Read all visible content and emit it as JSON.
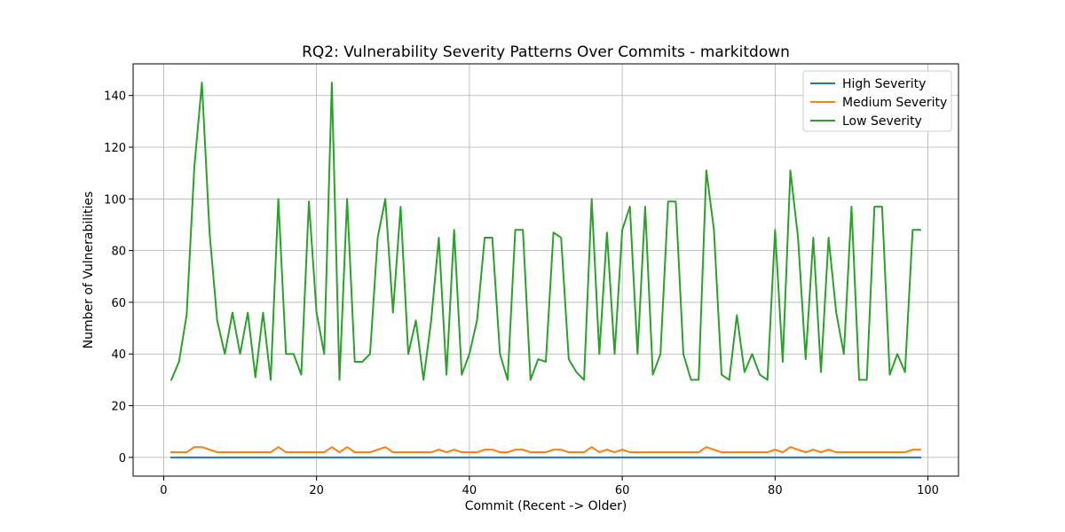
{
  "chart_data": {
    "type": "line",
    "title": "RQ2: Vulnerability Severity Patterns Over Commits - markitdown",
    "xlabel": "Commit (Recent -> Older)",
    "ylabel": "Number of Vulnerabilities",
    "xlim": [
      -4,
      104
    ],
    "ylim": [
      -7.25,
      152.25
    ],
    "xticks": [
      0,
      20,
      40,
      60,
      80,
      100
    ],
    "yticks": [
      0,
      20,
      40,
      60,
      80,
      100,
      120,
      140
    ],
    "grid": true,
    "legend_position": "top-right",
    "x": [
      1,
      2,
      3,
      4,
      5,
      6,
      7,
      8,
      9,
      10,
      11,
      12,
      13,
      14,
      15,
      16,
      17,
      18,
      19,
      20,
      21,
      22,
      23,
      24,
      25,
      26,
      27,
      28,
      29,
      30,
      31,
      32,
      33,
      34,
      35,
      36,
      37,
      38,
      39,
      40,
      41,
      42,
      43,
      44,
      45,
      46,
      47,
      48,
      49,
      50,
      51,
      52,
      53,
      54,
      55,
      56,
      57,
      58,
      59,
      60,
      61,
      62,
      63,
      64,
      65,
      66,
      67,
      68,
      69,
      70,
      71,
      72,
      73,
      74,
      75,
      76,
      77,
      78,
      79,
      80,
      81,
      82,
      83,
      84,
      85,
      86,
      87,
      88,
      89,
      90,
      91,
      92,
      93,
      94,
      95,
      96,
      97,
      98,
      99
    ],
    "series": [
      {
        "name": "High Severity",
        "color": "#1f77b4",
        "values": [
          0,
          0,
          0,
          0,
          0,
          0,
          0,
          0,
          0,
          0,
          0,
          0,
          0,
          0,
          0,
          0,
          0,
          0,
          0,
          0,
          0,
          0,
          0,
          0,
          0,
          0,
          0,
          0,
          0,
          0,
          0,
          0,
          0,
          0,
          0,
          0,
          0,
          0,
          0,
          0,
          0,
          0,
          0,
          0,
          0,
          0,
          0,
          0,
          0,
          0,
          0,
          0,
          0,
          0,
          0,
          0,
          0,
          0,
          0,
          0,
          0,
          0,
          0,
          0,
          0,
          0,
          0,
          0,
          0,
          0,
          0,
          0,
          0,
          0,
          0,
          0,
          0,
          0,
          0,
          0,
          0,
          0,
          0,
          0,
          0,
          0,
          0,
          0,
          0,
          0,
          0,
          0,
          0,
          0,
          0,
          0,
          0,
          0,
          0
        ]
      },
      {
        "name": "Medium Severity",
        "color": "#ff7f0e",
        "values": [
          2,
          2,
          2,
          4,
          4,
          3,
          2,
          2,
          2,
          2,
          2,
          2,
          2,
          2,
          4,
          2,
          2,
          2,
          2,
          2,
          2,
          4,
          2,
          4,
          2,
          2,
          2,
          3,
          4,
          2,
          2,
          2,
          2,
          2,
          2,
          3,
          2,
          3,
          2,
          2,
          2,
          3,
          3,
          2,
          2,
          3,
          3,
          2,
          2,
          2,
          3,
          3,
          2,
          2,
          2,
          4,
          2,
          3,
          2,
          3,
          2,
          2,
          2,
          2,
          2,
          2,
          2,
          2,
          2,
          2,
          4,
          3,
          2,
          2,
          2,
          2,
          2,
          2,
          2,
          3,
          2,
          4,
          3,
          2,
          3,
          2,
          3,
          2,
          2,
          2,
          2,
          2,
          2,
          2,
          2,
          2,
          2,
          3,
          3
        ]
      },
      {
        "name": "Low Severity",
        "color": "#2ca02c",
        "values": [
          30,
          37,
          55,
          112,
          145,
          87,
          53,
          40,
          56,
          40,
          56,
          31,
          56,
          30,
          100,
          40,
          40,
          32,
          99,
          56,
          40,
          145,
          30,
          100,
          37,
          37,
          40,
          85,
          100,
          56,
          97,
          40,
          53,
          30,
          53,
          85,
          32,
          88,
          32,
          40,
          53,
          85,
          85,
          40,
          30,
          88,
          88,
          30,
          38,
          37,
          87,
          85,
          38,
          33,
          30,
          100,
          40,
          87,
          40,
          88,
          97,
          40,
          97,
          32,
          40,
          99,
          99,
          40,
          30,
          30,
          111,
          88,
          32,
          30,
          55,
          33,
          40,
          32,
          30,
          88,
          37,
          111,
          85,
          38,
          85,
          33,
          85,
          56,
          40,
          97,
          30,
          30,
          97,
          97,
          32,
          40,
          33,
          88,
          88
        ]
      }
    ]
  }
}
